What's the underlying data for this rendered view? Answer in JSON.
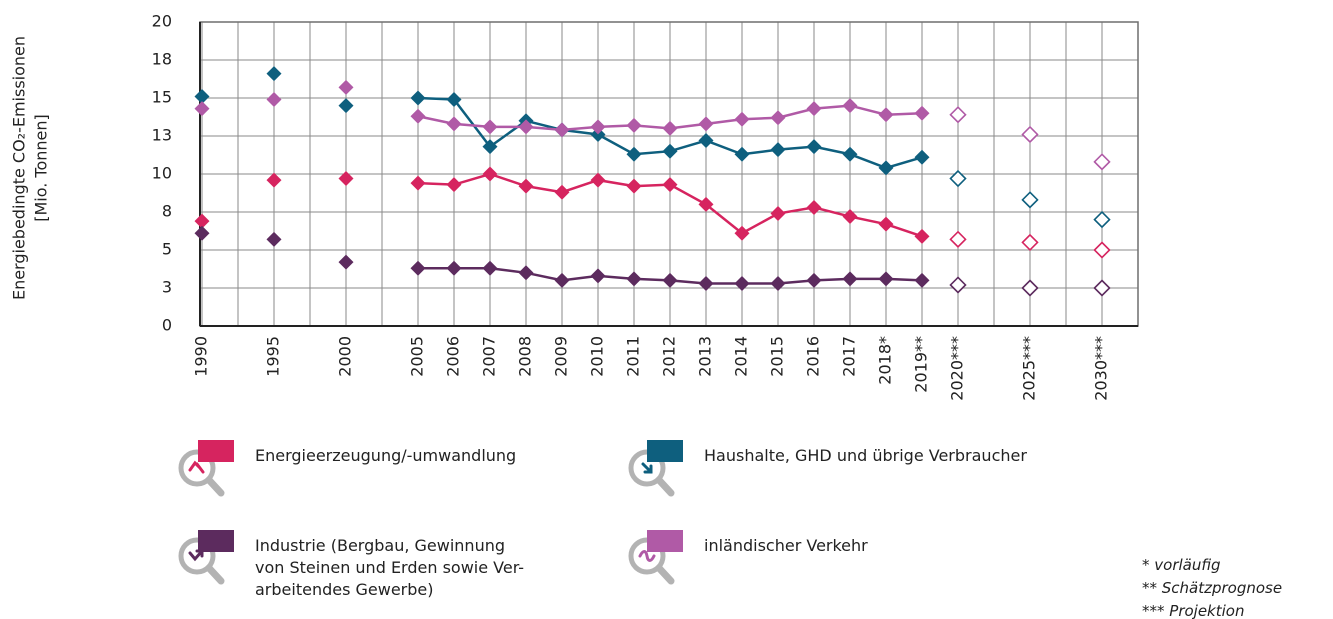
{
  "chart_data": {
    "type": "line",
    "y_label": [
      "Energiebedingte CO₂-Emissionen",
      "[Mio. Tonnen]"
    ],
    "categories": [
      "1990",
      null,
      "1995",
      null,
      "2000",
      null,
      "2005",
      "2006",
      "2007",
      "2008",
      "2009",
      "2010",
      "2011",
      "2012",
      "2013",
      "2014",
      "2015",
      "2016",
      "2017",
      "2018*",
      "2019**",
      "2020***",
      null,
      "2025***",
      null,
      "2030***"
    ],
    "open_markers_from": 21,
    "ylim": [
      0,
      20
    ],
    "yticks": [
      0,
      {
        "value": 2.5,
        "label": "3"
      },
      5,
      {
        "value": 7.5,
        "label": "8"
      },
      10,
      {
        "value": 12.5,
        "label": "13"
      },
      15,
      {
        "value": 17.5,
        "label": "18"
      },
      20
    ],
    "grid": true,
    "series": [
      {
        "name": "Energieerzeugung/-umwandlung",
        "color": "#d6245f",
        "values": [
          6.9,
          null,
          9.6,
          null,
          9.7,
          null,
          9.4,
          9.3,
          10.0,
          9.2,
          8.8,
          9.6,
          9.2,
          9.3,
          8.0,
          6.1,
          7.4,
          7.8,
          7.2,
          6.7,
          5.9,
          5.7,
          null,
          5.5,
          null,
          5.0
        ]
      },
      {
        "name": "Haushalte, GHD und übrige Verbraucher",
        "color": "#0e5f7e",
        "values": [
          15.1,
          null,
          16.6,
          null,
          14.5,
          null,
          15.0,
          14.9,
          11.8,
          13.5,
          12.9,
          12.6,
          11.3,
          11.5,
          12.2,
          11.3,
          11.6,
          11.8,
          11.3,
          10.4,
          11.1,
          9.7,
          null,
          8.3,
          null,
          7.0
        ]
      },
      {
        "name": "Industrie (Bergbau, Gewinnung\nvon Steinen und Erden sowie Ver-\narbeitendes Gewerbe)",
        "color": "#5c2b5e",
        "values": [
          6.1,
          null,
          5.7,
          null,
          4.2,
          null,
          3.8,
          3.8,
          3.8,
          3.5,
          3.0,
          3.3,
          3.1,
          3.0,
          2.8,
          2.8,
          2.8,
          3.0,
          3.1,
          3.1,
          3.0,
          2.7,
          null,
          2.5,
          null,
          2.5
        ]
      },
      {
        "name": "inländischer Verkehr",
        "color": "#b05aa6",
        "values": [
          14.3,
          null,
          14.9,
          null,
          15.7,
          null,
          13.8,
          13.3,
          13.1,
          13.1,
          12.9,
          13.1,
          13.2,
          13.0,
          13.3,
          13.6,
          13.7,
          14.3,
          14.5,
          13.9,
          14.0,
          13.9,
          null,
          12.6,
          null,
          10.8
        ]
      }
    ],
    "notes": [
      "* vorläufig",
      "** Schätzprognose",
      "*** Projektion"
    ]
  }
}
